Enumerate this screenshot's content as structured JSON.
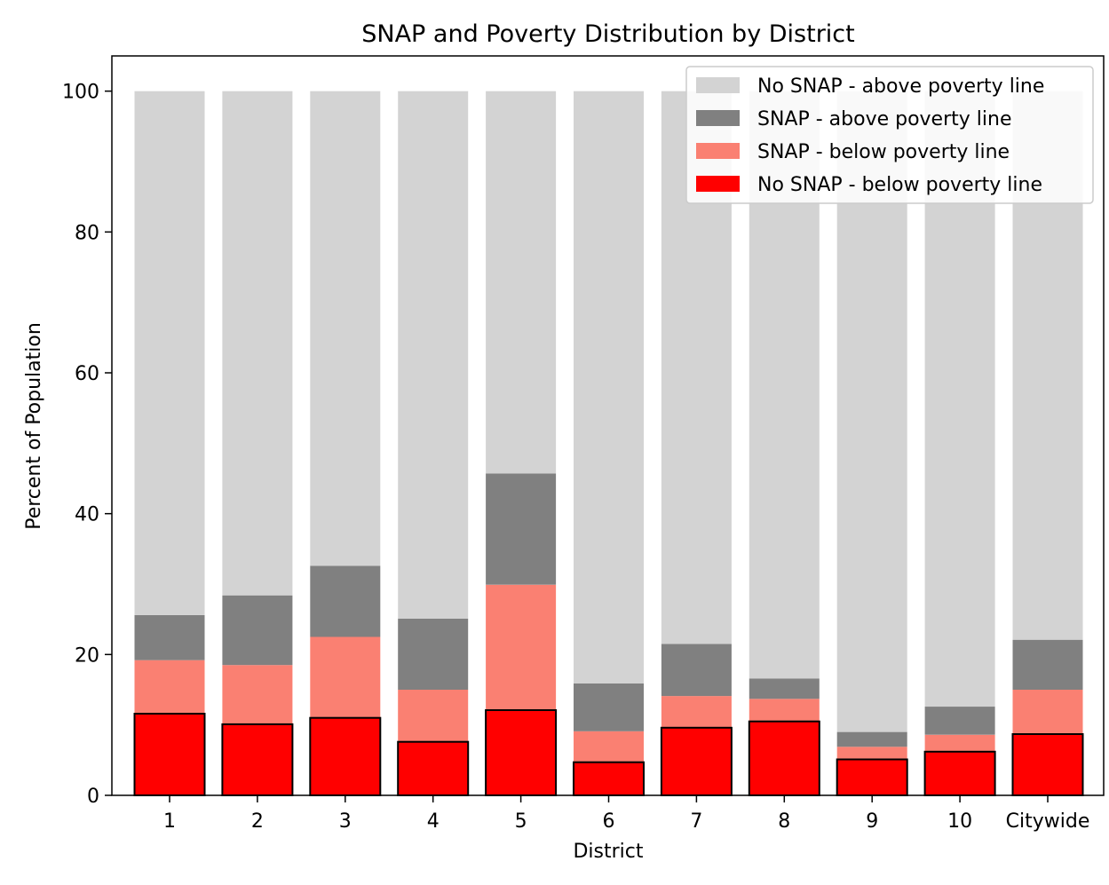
{
  "chart_data": {
    "type": "bar",
    "stacked": true,
    "title": "SNAP and Poverty Distribution by District",
    "xlabel": "District",
    "ylabel": "Percent of Population",
    "categories": [
      "1",
      "2",
      "3",
      "4",
      "5",
      "6",
      "7",
      "8",
      "9",
      "10",
      "Citywide"
    ],
    "ylim": [
      0,
      105
    ],
    "yticks": [
      0,
      20,
      40,
      60,
      80,
      100
    ],
    "grid": false,
    "legend_position": "top-right",
    "series": [
      {
        "name": "No SNAP - below poverty line",
        "color": "#ff0000",
        "outlined": true,
        "values": [
          11.6,
          10.1,
          11.0,
          7.6,
          12.1,
          4.7,
          9.6,
          10.5,
          5.1,
          6.2,
          8.7
        ]
      },
      {
        "name": "SNAP - below poverty line",
        "color": "#fa8072",
        "outlined": false,
        "values": [
          7.6,
          8.4,
          11.5,
          7.4,
          17.8,
          4.4,
          4.5,
          3.2,
          1.8,
          2.4,
          6.3
        ]
      },
      {
        "name": "SNAP - above poverty line",
        "color": "#808080",
        "outlined": false,
        "values": [
          6.4,
          9.9,
          10.1,
          10.1,
          15.8,
          6.8,
          7.4,
          2.9,
          2.1,
          4.0,
          7.1
        ]
      },
      {
        "name": "No SNAP - above poverty line",
        "color": "#d3d3d3",
        "outlined": false,
        "values": [
          74.4,
          71.6,
          67.4,
          74.9,
          54.3,
          84.1,
          78.5,
          83.4,
          91.0,
          87.4,
          77.9
        ]
      }
    ],
    "legend_order": [
      "No SNAP - above poverty line",
      "SNAP - above poverty line",
      "SNAP - below poverty line",
      "No SNAP - below poverty line"
    ]
  }
}
